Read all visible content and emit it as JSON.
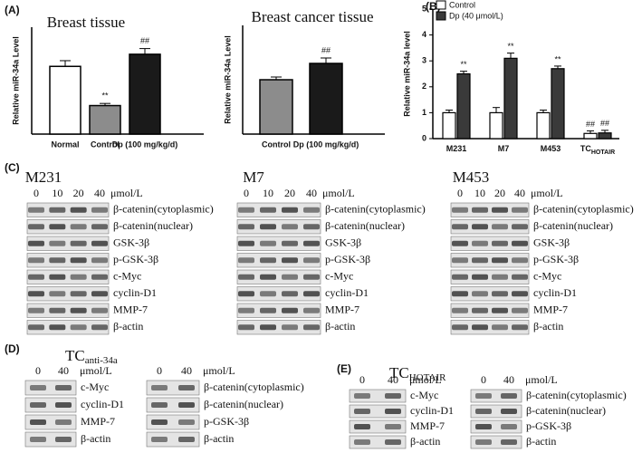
{
  "figure_labels": [
    "(A)",
    "(B)",
    "(C)",
    "(D)",
    "(E)"
  ],
  "chart_data": [
    {
      "type": "bar",
      "title": "Breast tissue",
      "y_label": "Relative miR-34a Level",
      "categories": [
        "Normal",
        "Control",
        "Dp (100 mg/kg/d)"
      ],
      "values": [
        0.95,
        0.4,
        1.12
      ],
      "errors": [
        0.08,
        0.03,
        0.08
      ],
      "colors": [
        "#ffffff",
        "#8c8c8c",
        "#1a1a1a"
      ],
      "annotations": [
        null,
        "**",
        "##"
      ],
      "ylim": [
        0,
        1.5
      ]
    },
    {
      "type": "bar",
      "title": "Breast cancer tissue",
      "y_label": "Relative miR-34a Level",
      "categories": [
        "Control",
        "Dp (100 mg/kg/d)"
      ],
      "values": [
        1.0,
        1.3
      ],
      "errors": [
        0.05,
        0.1
      ],
      "colors": [
        "#8c8c8c",
        "#1a1a1a"
      ],
      "annotations": [
        null,
        "##"
      ],
      "ylim": [
        0,
        2
      ]
    },
    {
      "type": "grouped_bar",
      "y_label": "Relative miR-34a level",
      "categories": [
        "M231",
        "M7",
        "M453",
        "TC"
      ],
      "category_subscripts": [
        null,
        null,
        null,
        "HOTAIR"
      ],
      "series": [
        {
          "name": "Control",
          "color": "#ffffff",
          "values": [
            1.0,
            1.0,
            1.0,
            0.2
          ],
          "errors": [
            0.1,
            0.2,
            0.1,
            0.1
          ],
          "annotations": [
            null,
            null,
            null,
            "##"
          ]
        },
        {
          "name": "Dp (40 μmol/L)",
          "color": "#3a3a3a",
          "values": [
            2.5,
            3.1,
            2.7,
            0.22
          ],
          "errors": [
            0.1,
            0.2,
            0.1,
            0.1
          ],
          "annotations": [
            "**",
            "**",
            "**",
            "##"
          ]
        }
      ],
      "ylim": [
        0,
        5
      ],
      "yticks": [
        0,
        1,
        2,
        3,
        4,
        5
      ]
    }
  ],
  "blots": {
    "C": [
      {
        "title": "M231",
        "lanes": [
          "0",
          "10",
          "20",
          "40"
        ],
        "unit": "μmol/L",
        "proteins": [
          "β-catenin(cytoplasmic)",
          "β-catenin(nuclear)",
          "GSK-3β",
          "p-GSK-3β",
          "c-Myc",
          "cyclin-D1",
          "MMP-7",
          "β-actin"
        ]
      },
      {
        "title": "M7",
        "lanes": [
          "0",
          "10",
          "20",
          "40"
        ],
        "unit": "μmol/L",
        "proteins": [
          "β-catenin(cytoplasmic)",
          "β-catenin(nuclear)",
          "GSK-3β",
          "p-GSK-3β",
          "c-Myc",
          "cyclin-D1",
          "MMP-7",
          "β-actin"
        ]
      },
      {
        "title": "M453",
        "lanes": [
          "0",
          "10",
          "20",
          "40"
        ],
        "unit": "μmol/L",
        "proteins": [
          "β-catenin(cytoplasmic)",
          "β-catenin(nuclear)",
          "GSK-3β",
          "p-GSK-3β",
          "c-Myc",
          "cyclin-D1",
          "MMP-7",
          "β-actin"
        ]
      }
    ],
    "D": {
      "title": "TC",
      "title_sub": "anti-34a",
      "lanes": [
        "0",
        "40"
      ],
      "unit": "μmol/L",
      "groups": [
        [
          "c-Myc",
          "cyclin-D1",
          "MMP-7",
          "β-actin"
        ],
        [
          "β-catenin(cytoplasmic)",
          "β-catenin(nuclear)",
          "p-GSK-3β",
          "β-actin"
        ]
      ]
    },
    "E": {
      "title": "TC",
      "title_sub": "HOTAIR",
      "lanes": [
        "0",
        "40"
      ],
      "unit": "μmol/L",
      "groups": [
        [
          "c-Myc",
          "cyclin-D1",
          "MMP-7",
          "β-actin"
        ],
        [
          "β-catenin(cytoplasmic)",
          "β-catenin(nuclear)",
          "p-GSK-3β",
          "β-actin"
        ]
      ]
    }
  }
}
